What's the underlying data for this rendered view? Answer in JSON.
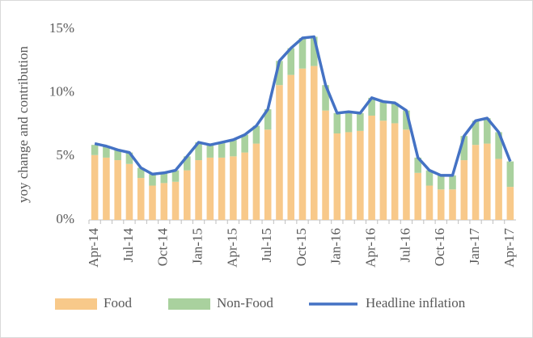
{
  "chart_data": {
    "type": "bar",
    "y_label": "yoy change and contribution",
    "categories": [
      "Apr-14",
      null,
      null,
      "Jul-14",
      null,
      null,
      "Oct-14",
      null,
      null,
      "Jan-15",
      null,
      null,
      "Apr-15",
      null,
      null,
      "Jul-15",
      null,
      null,
      "Oct-15",
      null,
      null,
      "Jan-16",
      null,
      null,
      "Apr-16",
      null,
      null,
      "Jul-16",
      null,
      null,
      "Oct-16",
      null,
      null,
      "Jan-17",
      null,
      null,
      "Apr-17"
    ],
    "stacked": true,
    "series": [
      {
        "name": "Food",
        "type": "bar",
        "color": "#f8c98a",
        "values": [
          5.1,
          4.9,
          4.7,
          4.4,
          3.3,
          2.7,
          2.9,
          3.0,
          3.9,
          4.7,
          4.9,
          4.9,
          5.0,
          5.3,
          6.0,
          7.1,
          10.6,
          11.4,
          11.9,
          12.1,
          8.6,
          6.8,
          6.9,
          7.0,
          8.2,
          7.8,
          7.6,
          7.1,
          3.7,
          2.7,
          2.4,
          2.4,
          4.7,
          5.9,
          6.0,
          4.8,
          2.6
        ]
      },
      {
        "name": "Non-Food",
        "type": "bar",
        "color": "#a9d19e",
        "values": [
          0.8,
          0.9,
          0.8,
          0.9,
          0.8,
          0.9,
          0.8,
          0.9,
          1.1,
          1.4,
          1.0,
          1.2,
          1.3,
          1.4,
          1.4,
          1.6,
          1.9,
          2.1,
          2.4,
          2.3,
          2.0,
          1.6,
          1.6,
          1.4,
          1.4,
          1.5,
          1.6,
          1.5,
          1.2,
          1.2,
          1.1,
          1.1,
          1.9,
          1.9,
          2.0,
          2.1,
          2.0
        ]
      },
      {
        "name": "Headline inflation",
        "type": "line",
        "color": "#4472c4",
        "values": [
          6.0,
          5.8,
          5.5,
          5.3,
          4.1,
          3.6,
          3.7,
          3.9,
          5.0,
          6.1,
          5.9,
          6.1,
          6.3,
          6.7,
          7.4,
          8.7,
          12.5,
          13.5,
          14.3,
          14.4,
          10.6,
          8.4,
          8.5,
          8.4,
          9.6,
          9.3,
          9.2,
          8.6,
          4.9,
          3.9,
          3.5,
          3.5,
          6.6,
          7.8,
          8.0,
          6.9,
          4.6
        ]
      }
    ],
    "ylim": [
      0,
      15
    ],
    "yticks": [
      {
        "value": 0,
        "label": "0%"
      },
      {
        "value": 5,
        "label": "5%"
      },
      {
        "value": 10,
        "label": "10%"
      },
      {
        "value": 15,
        "label": "15%"
      }
    ]
  }
}
